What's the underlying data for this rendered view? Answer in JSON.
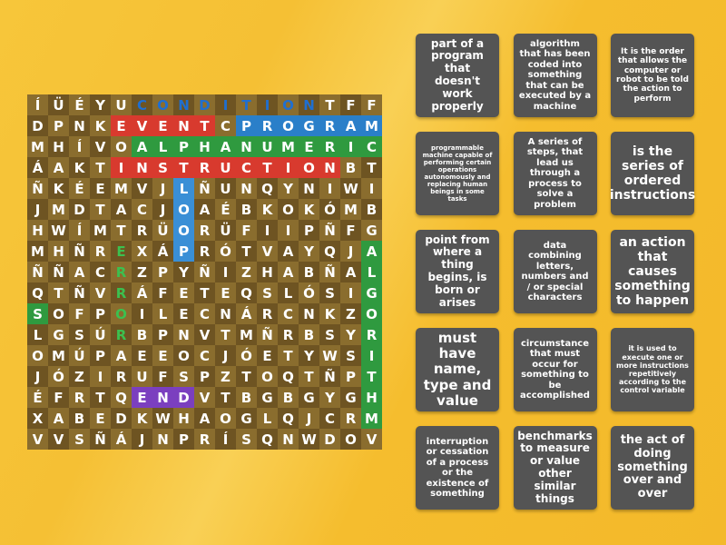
{
  "grid": {
    "rows": [
      [
        "Í",
        "Ü",
        "É",
        "Y",
        "U",
        "C",
        "O",
        "N",
        "D",
        "I",
        "T",
        "I",
        "O",
        "N",
        "T",
        "F",
        "F"
      ],
      [
        "D",
        "P",
        "N",
        "K",
        "E",
        "V",
        "E",
        "N",
        "T",
        "C",
        "P",
        "R",
        "O",
        "G",
        "R",
        "A",
        "M"
      ],
      [
        "M",
        "H",
        "Í",
        "V",
        "O",
        "A",
        "L",
        "P",
        "H",
        "A",
        "N",
        "U",
        "M",
        "E",
        "R",
        "I",
        "C"
      ],
      [
        "Á",
        "A",
        "K",
        "T",
        "I",
        "N",
        "S",
        "T",
        "R",
        "U",
        "C",
        "T",
        "I",
        "O",
        "N",
        "B",
        "T"
      ],
      [
        "Ñ",
        "K",
        "É",
        "E",
        "M",
        "V",
        "J",
        "L",
        "Ñ",
        "U",
        "N",
        "Q",
        "Y",
        "N",
        "I",
        "W",
        "I"
      ],
      [
        "J",
        "M",
        "D",
        "T",
        "A",
        "C",
        "J",
        "O",
        "A",
        "É",
        "B",
        "K",
        "O",
        "K",
        "Ó",
        "M",
        "B"
      ],
      [
        "H",
        "W",
        "Í",
        "M",
        "T",
        "R",
        "Ü",
        "O",
        "R",
        "Ü",
        "F",
        "I",
        "I",
        "P",
        "Ñ",
        "F",
        "G"
      ],
      [
        "M",
        "H",
        "Ñ",
        "R",
        "E",
        "X",
        "Á",
        "P",
        "R",
        "Ó",
        "T",
        "V",
        "A",
        "Y",
        "Q",
        "J",
        "A"
      ],
      [
        "Ñ",
        "Ñ",
        "A",
        "C",
        "R",
        "Z",
        "P",
        "Y",
        "Ñ",
        "I",
        "Z",
        "H",
        "A",
        "B",
        "Ñ",
        "A",
        "L"
      ],
      [
        "Q",
        "T",
        "Ñ",
        "V",
        "R",
        "Á",
        "F",
        "E",
        "T",
        "E",
        "Q",
        "S",
        "L",
        "Ó",
        "S",
        "I",
        "G"
      ],
      [
        "S",
        "O",
        "F",
        "P",
        "O",
        "I",
        "L",
        "E",
        "C",
        "N",
        "Á",
        "R",
        "C",
        "N",
        "K",
        "Z",
        "O"
      ],
      [
        "L",
        "G",
        "S",
        "Ú",
        "R",
        "B",
        "P",
        "N",
        "V",
        "T",
        "M",
        "Ñ",
        "R",
        "B",
        "S",
        "Y",
        "R"
      ],
      [
        "O",
        "M",
        "Ú",
        "P",
        "A",
        "E",
        "E",
        "O",
        "C",
        "J",
        "Ó",
        "E",
        "T",
        "Y",
        "W",
        "S",
        "I"
      ],
      [
        "J",
        "Ó",
        "Z",
        "I",
        "R",
        "U",
        "F",
        "S",
        "P",
        "Z",
        "T",
        "O",
        "Q",
        "T",
        "Ñ",
        "P",
        "T"
      ],
      [
        "É",
        "F",
        "R",
        "T",
        "Q",
        "E",
        "N",
        "D",
        "V",
        "T",
        "B",
        "G",
        "B",
        "G",
        "Y",
        "G",
        "H"
      ],
      [
        "X",
        "A",
        "B",
        "E",
        "D",
        "K",
        "W",
        "H",
        "A",
        "O",
        "G",
        "L",
        "Q",
        "J",
        "C",
        "R",
        "M"
      ],
      [
        "V",
        "V",
        "S",
        "Ñ",
        "Á",
        "J",
        "N",
        "P",
        "R",
        "Í",
        "S",
        "Q",
        "N",
        "W",
        "D",
        "O",
        "V"
      ]
    ]
  },
  "cards": [
    "part of a program that doesn't work properly",
    "algorithm that has been coded into something that can be executed by a machine",
    "It is the order that allows the computer or robot to be told the action to perform",
    "programmable machine capable of performing certain operations autonomously and replacing human beings in some tasks",
    "A series of steps, that lead us through a process to solve a problem",
    "is the series of ordered instructions",
    "point from where a thing begins, is born or arises",
    "data combining letters, numbers and / or special characters",
    "an action that causes something to happen",
    "must have name, type and value",
    "circumstance that must occur for something to be accomplished",
    "it is used to execute one or more instructions repetitively according to the control variable",
    "interruption or cessation of a process or the existence of something",
    "benchmarks to measure or value other similar things",
    "the act of doing something over and over"
  ]
}
